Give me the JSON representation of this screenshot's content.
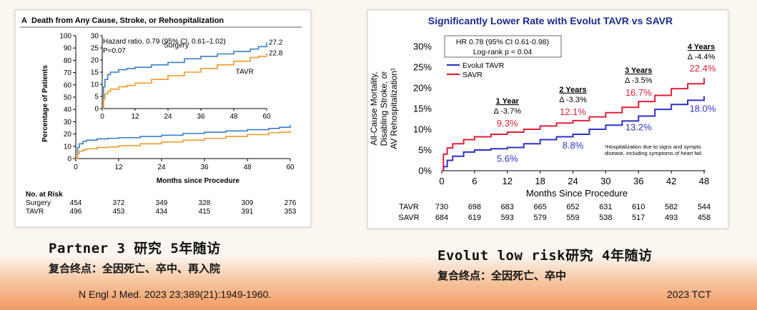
{
  "left_caption": {
    "title": "Partner 3 研究  5年随访",
    "subtitle": "复合终点：全因死亡、卒中、再入院"
  },
  "right_caption": {
    "title": "Evolut low risk研究  4年随访",
    "subtitle": "复合终点：全因死亡、卒中"
  },
  "footer": {
    "citation": "N Engl J Med. 2023  23;389(21):1949-1960.",
    "source": "2023 TCT"
  },
  "chart_data": [
    {
      "type": "line",
      "panel_label": "A",
      "title": "Death from Any Cause, Stroke, or Rehospitalization",
      "xlabel": "Months since Procedure",
      "ylabel": "Percentage of Patients",
      "xlim": [
        0,
        60
      ],
      "ylim": [
        0,
        100
      ],
      "x_ticks": [
        "0",
        "12",
        "24",
        "36",
        "48",
        "60"
      ],
      "y_ticks": [
        "0",
        "10",
        "20",
        "30",
        "40",
        "50",
        "60",
        "70",
        "80",
        "90",
        "100"
      ],
      "series": [
        {
          "name": "Surgery",
          "color": "#3a7fc6",
          "x": [
            0,
            0.5,
            1,
            2,
            3,
            6,
            9,
            12,
            18,
            24,
            30,
            36,
            42,
            48,
            54,
            57,
            60
          ],
          "y": [
            0,
            9,
            12,
            14,
            15,
            16,
            16.5,
            17,
            18,
            19,
            20.5,
            21.5,
            22.5,
            23.5,
            24.5,
            25.5,
            27.2
          ]
        },
        {
          "name": "TAVR",
          "color": "#ef9a2c",
          "x": [
            0,
            0.5,
            1,
            2,
            3,
            6,
            9,
            12,
            18,
            24,
            30,
            36,
            42,
            48,
            54,
            57,
            60
          ],
          "y": [
            0,
            4,
            6,
            7,
            8,
            9,
            9.5,
            10.5,
            12,
            13.5,
            15,
            16.5,
            18,
            19.5,
            21,
            21.5,
            22.8
          ]
        }
      ],
      "inset": {
        "xlim": [
          0,
          60
        ],
        "ylim": [
          0,
          30
        ],
        "x_ticks": [
          "0",
          "12",
          "24",
          "36",
          "48",
          "60"
        ],
        "y_ticks": [
          "0",
          "5",
          "10",
          "15",
          "20",
          "25",
          "30"
        ],
        "annotation_lines": [
          "Hazard ratio, 0.79 (95% CI, 0.61–1.02)",
          "P=0.07"
        ],
        "end_labels": {
          "Surgery": "27.2",
          "TAVR": "22.8"
        }
      },
      "risk_table": {
        "header": "No. at Risk",
        "rows": [
          {
            "label": "Surgery",
            "values": [
              "454",
              "372",
              "349",
              "328",
              "309",
              "276"
            ]
          },
          {
            "label": "TAVR",
            "values": [
              "496",
              "453",
              "434",
              "415",
              "391",
              "353"
            ]
          }
        ]
      }
    },
    {
      "type": "line",
      "title": "Significantly Lower Rate with Evolut TAVR vs SAVR",
      "xlabel": "Months Since Procedure",
      "ylabel_lines": [
        "All-Cause Mortality,",
        "Disabling Stroke, or",
        "AV Rehospitalization¹"
      ],
      "xlim": [
        0,
        48
      ],
      "ylim": [
        0,
        30
      ],
      "x_ticks": [
        "0",
        "6",
        "12",
        "18",
        "24",
        "30",
        "36",
        "42",
        "48"
      ],
      "y_ticks": [
        "0%",
        "5%",
        "10%",
        "15%",
        "20%",
        "25%",
        "30%"
      ],
      "annotation_lines": [
        "HR 0.78 (95% CI 0.61-0.98)",
        "Log-rank p = 0.04"
      ],
      "series": [
        {
          "name": "Evolut TAVR",
          "color": "#2c33c9",
          "x": [
            0,
            0.3,
            1,
            2,
            4,
            6,
            9,
            12,
            15,
            18,
            21,
            24,
            27,
            30,
            33,
            36,
            39,
            42,
            45,
            48
          ],
          "y": [
            0,
            1,
            2.5,
            3.5,
            4.5,
            5,
            5.3,
            5.6,
            6.5,
            7.5,
            8.2,
            8.8,
            10,
            11,
            12,
            13.2,
            14.8,
            16,
            17,
            18.0
          ],
          "point_labels": [
            {
              "x": 12,
              "text": "5.6%"
            },
            {
              "x": 24,
              "text": "8.8%"
            },
            {
              "x": 36,
              "text": "13.2%"
            },
            {
              "x": 48,
              "text": "18.0%"
            }
          ]
        },
        {
          "name": "SAVR",
          "color": "#e0203b",
          "x": [
            0,
            0.3,
            1,
            2,
            4,
            6,
            9,
            12,
            15,
            18,
            21,
            24,
            27,
            30,
            33,
            36,
            39,
            42,
            45,
            48
          ],
          "y": [
            0,
            4,
            5.5,
            6.5,
            7.5,
            8.2,
            8.8,
            9.3,
            10,
            10.8,
            11.5,
            12.1,
            13,
            14,
            15.3,
            16.7,
            18.2,
            19.8,
            21,
            22.4
          ],
          "point_labels": [
            {
              "x": 12,
              "text": "9.3%"
            },
            {
              "x": 24,
              "text": "12.1%"
            },
            {
              "x": 36,
              "text": "16.7%"
            },
            {
              "x": 48,
              "text": "22.4%"
            }
          ]
        }
      ],
      "deltas": [
        {
          "x": 12,
          "year": "1 Year",
          "delta": "Δ -3.7%"
        },
        {
          "x": 24,
          "year": "2 Years",
          "delta": "Δ -3.3%"
        },
        {
          "x": 36,
          "year": "3 Years",
          "delta": "Δ -3.5%"
        },
        {
          "x": 48,
          "year": "4 Years",
          "delta": "Δ -4.4%"
        }
      ],
      "footnote_lines": [
        "¹Hospitalization due to signs and sympto",
        "disease, including symptoms of heart fail"
      ],
      "risk_table": {
        "rows": [
          {
            "label": "TAVR",
            "values": [
              "730",
              "698",
              "683",
              "665",
              "652",
              "631",
              "610",
              "582",
              "544"
            ]
          },
          {
            "label": "SAVR",
            "values": [
              "684",
              "619",
              "593",
              "579",
              "559",
              "538",
              "517",
              "493",
              "458"
            ]
          }
        ]
      }
    }
  ]
}
